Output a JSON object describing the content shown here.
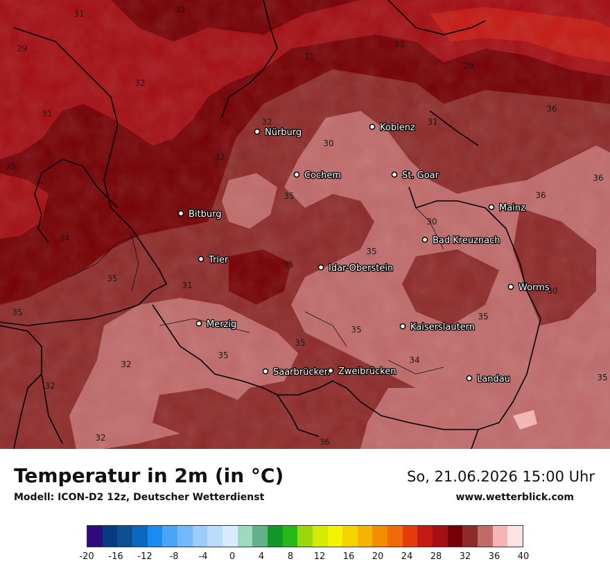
{
  "title": "Temperatur in 2m (in °C)",
  "model": "Modell: ICON-D2 12z, Deutscher Wetterdienst",
  "datetime": "So, 21.06.2026 15:00 Uhr",
  "website": "www.wetterblick.com",
  "cities": [
    "Nürburg",
    "Koblenz",
    "Cochem",
    "St. Goar",
    "Bitburg",
    "Mainz",
    "Bad Kreuznach",
    "Trier",
    "Idar-Oberstein",
    "Worms",
    "Merzig",
    "Kaiserslautern",
    "Saarbrücken",
    "Zweibrücken",
    "Landau"
  ],
  "isotherm_labels": [
    "31",
    "32",
    "29",
    "32",
    "31",
    "32",
    "28",
    "31",
    "32",
    "31",
    "36",
    "30",
    "32",
    "35",
    "36",
    "35",
    "36",
    "30",
    "35",
    "34",
    "35",
    "35",
    "31",
    "30",
    "35",
    "35",
    "35",
    "35",
    "35",
    "32",
    "34",
    "32",
    "35",
    "32",
    "36"
  ],
  "legend": {
    "colors": [
      "#2e0a7c",
      "#073b80",
      "#0b4f92",
      "#0a68c0",
      "#1a8cf0",
      "#4aa4f8",
      "#73b8fb",
      "#9bccfc",
      "#bcdcfd",
      "#d9ebfe",
      "#9bdcc0",
      "#64b08a",
      "#14962a",
      "#26b818",
      "#9bd60a",
      "#d4ec04",
      "#f4f400",
      "#f4d400",
      "#f4b400",
      "#f48c00",
      "#f06a0a",
      "#e63a0a",
      "#c41a14",
      "#a40e14",
      "#760004",
      "#8e2a2a",
      "#c06a6a",
      "#f6b4b4",
      "#fde2e2"
    ],
    "ticks": [
      "-20",
      "-16",
      "-12",
      "-8",
      "-4",
      "0",
      "4",
      "8",
      "12",
      "16",
      "20",
      "24",
      "28",
      "32",
      "36",
      "40"
    ]
  }
}
